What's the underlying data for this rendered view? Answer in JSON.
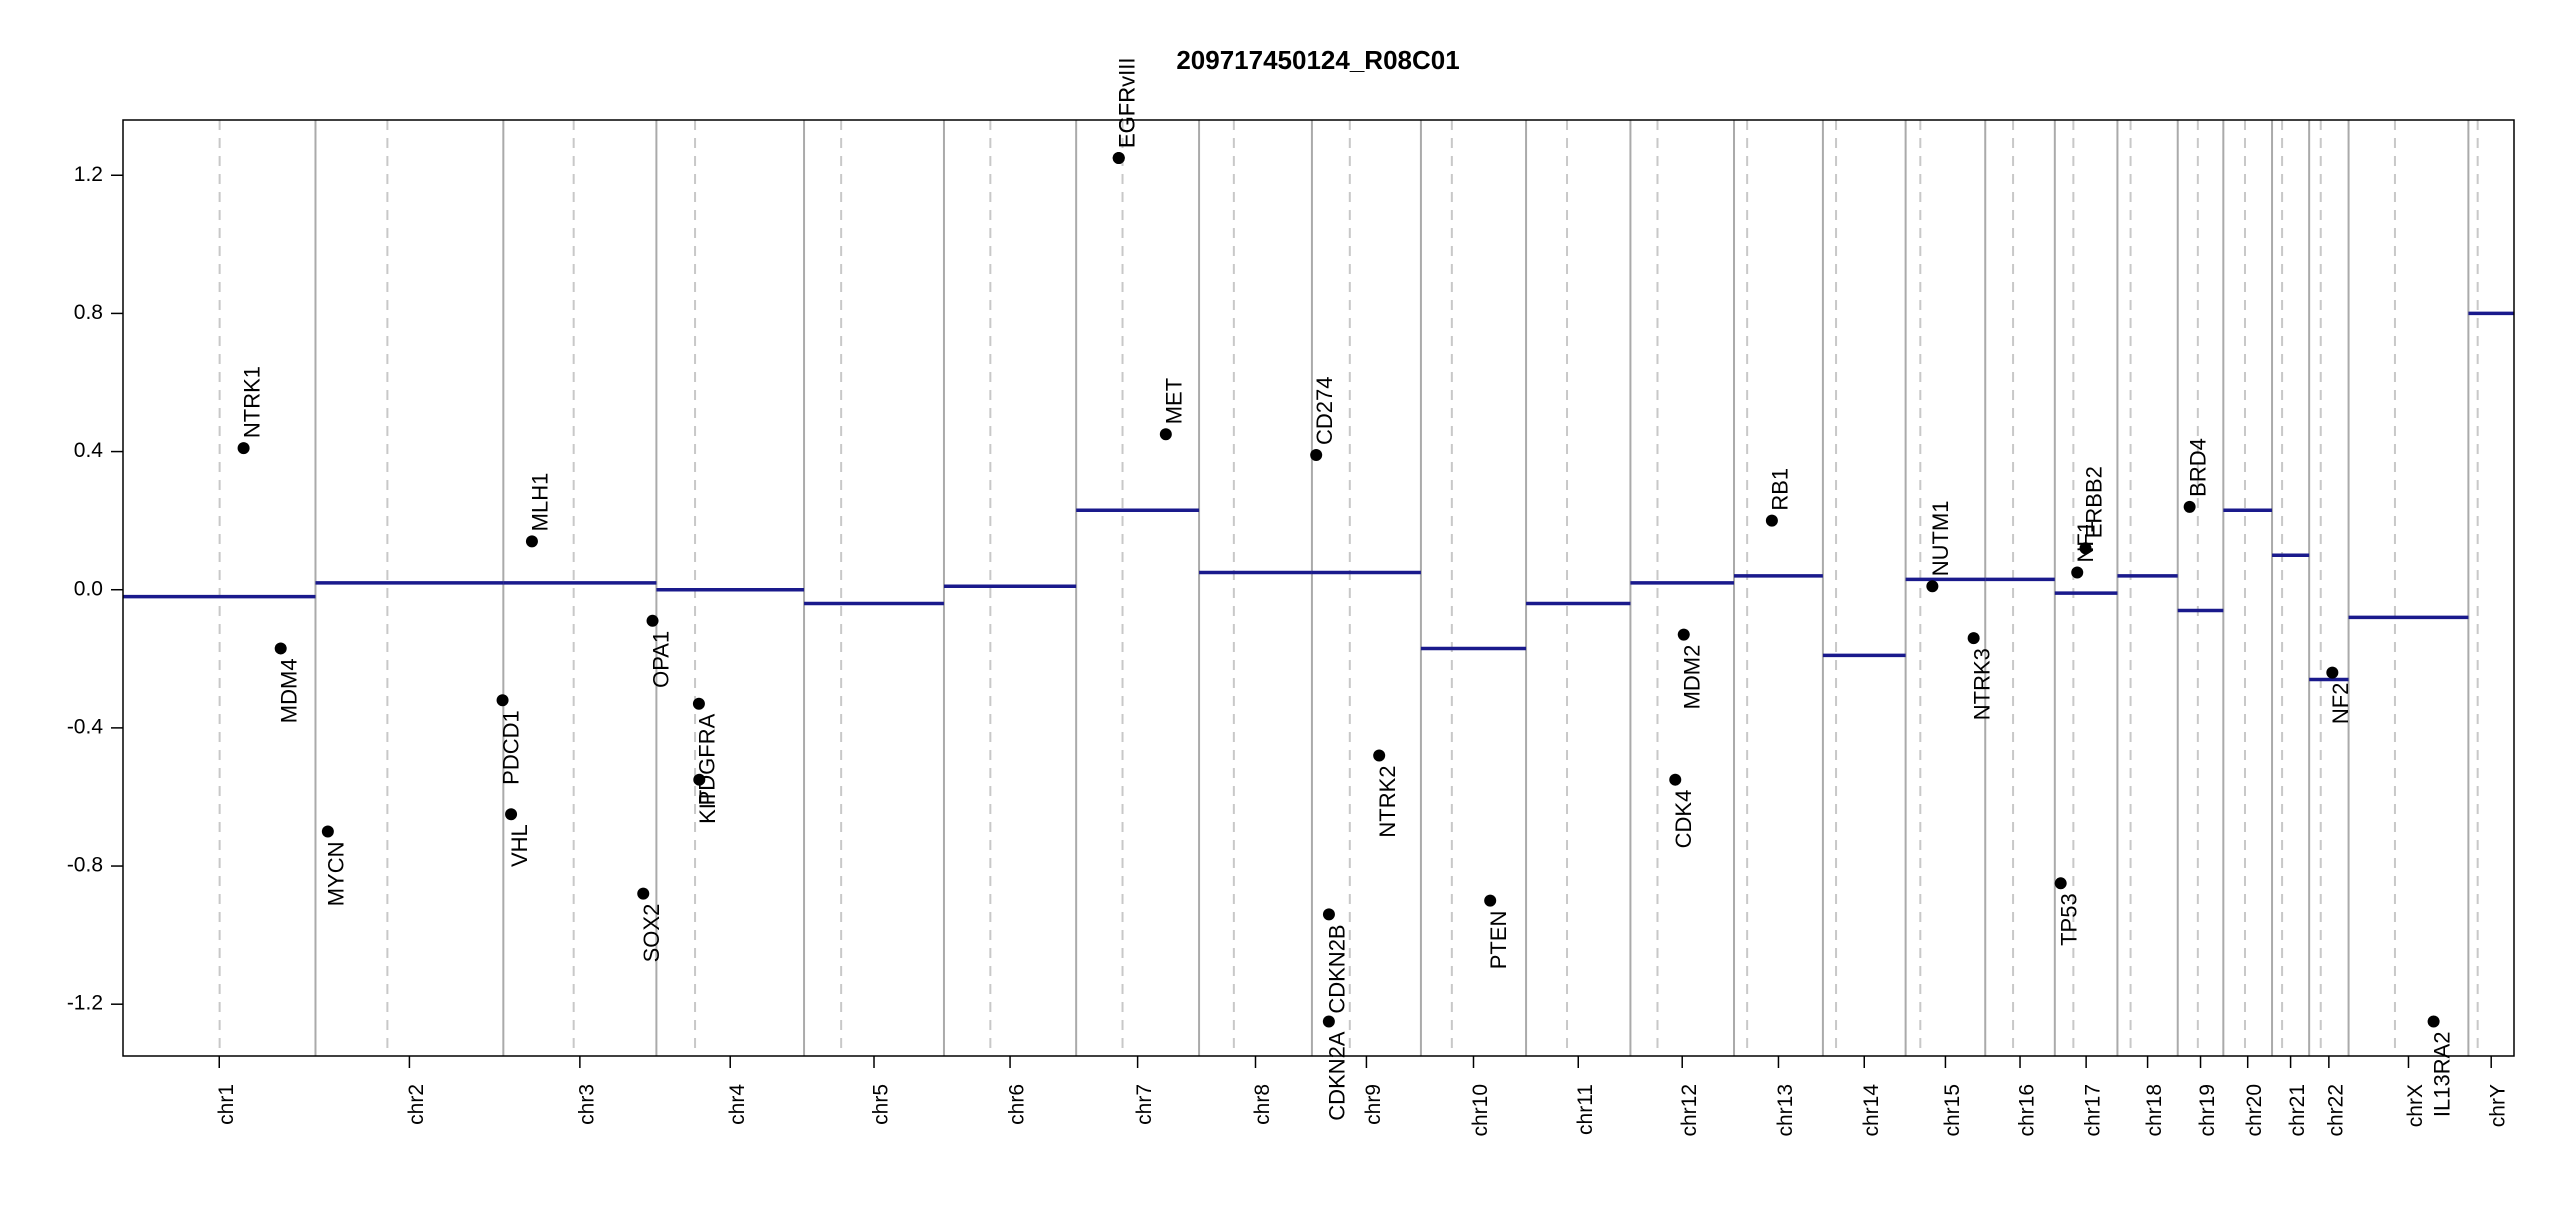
{
  "chart_data": {
    "type": "copy-number",
    "title": "209717450124_R08C01",
    "chromosomes": [
      "chr1",
      "chr2",
      "chr3",
      "chr4",
      "chr5",
      "chr6",
      "chr7",
      "chr8",
      "chr9",
      "chr10",
      "chr11",
      "chr12",
      "chr13",
      "chr14",
      "chr15",
      "chr16",
      "chr17",
      "chr18",
      "chr19",
      "chr20",
      "chr21",
      "chr22",
      "chrX",
      "chrY"
    ],
    "lengths": [
      249,
      243,
      198,
      191,
      181,
      171,
      159,
      146,
      141,
      136,
      135,
      134,
      115,
      107,
      103,
      90,
      81,
      78,
      59,
      63,
      48,
      51,
      155,
      59
    ],
    "centromeres": [
      125,
      93,
      91,
      50,
      48,
      60,
      60,
      45,
      49,
      40,
      53,
      35,
      17,
      17,
      19,
      36,
      24,
      17,
      26,
      28,
      13,
      15,
      60,
      12
    ],
    "segments": [
      -0.02,
      0.02,
      0.02,
      0.0,
      -0.04,
      0.01,
      0.23,
      0.05,
      0.05,
      -0.17,
      -0.04,
      0.02,
      0.04,
      -0.19,
      0.03,
      0.03,
      -0.01,
      0.04,
      -0.06,
      0.23,
      0.1,
      -0.26,
      -0.08,
      0.8
    ],
    "segment_color": "#1a1a8c",
    "genes": [
      {
        "name": "NTRK1",
        "chrom": "chr1",
        "pos": 156,
        "value": 0.41
      },
      {
        "name": "MDM4",
        "chrom": "chr1",
        "pos": 204,
        "value": -0.17
      },
      {
        "name": "MYCN",
        "chrom": "chr2",
        "pos": 16,
        "value": -0.7
      },
      {
        "name": "PDCD1",
        "chrom": "chr2",
        "pos": 242,
        "value": -0.32
      },
      {
        "name": "VHL",
        "chrom": "chr3",
        "pos": 10,
        "value": -0.65
      },
      {
        "name": "MLH1",
        "chrom": "chr3",
        "pos": 37,
        "value": 0.14
      },
      {
        "name": "SOX2",
        "chrom": "chr3",
        "pos": 181,
        "value": -0.88
      },
      {
        "name": "OPA1",
        "chrom": "chr3",
        "pos": 193,
        "value": -0.09
      },
      {
        "name": "PDGFRA",
        "chrom": "chr4",
        "pos": 55,
        "value": -0.33
      },
      {
        "name": "KIT",
        "chrom": "chr4",
        "pos": 55.5,
        "value": -0.55
      },
      {
        "name": "EGFR",
        "chrom": "chr7",
        "pos": 55,
        "value": 1.25
      },
      {
        "name": "EGFRvIII",
        "chrom": "chr7",
        "pos": 55.2,
        "value": 1.25
      },
      {
        "name": "MET",
        "chrom": "chr7",
        "pos": 116,
        "value": 0.45
      },
      {
        "name": "CD274",
        "chrom": "chr9",
        "pos": 5.5,
        "value": 0.39
      },
      {
        "name": "CDKN2A",
        "chrom": "chr9",
        "pos": 21.9,
        "value": -1.25
      },
      {
        "name": "CDKN2B",
        "chrom": "chr9",
        "pos": 22.0,
        "value": -0.94
      },
      {
        "name": "NTRK2",
        "chrom": "chr9",
        "pos": 87,
        "value": -0.48
      },
      {
        "name": "PTEN",
        "chrom": "chr10",
        "pos": 89.6,
        "value": -0.9
      },
      {
        "name": "CDK4",
        "chrom": "chr12",
        "pos": 58,
        "value": -0.55
      },
      {
        "name": "MDM2",
        "chrom": "chr12",
        "pos": 69,
        "value": -0.13
      },
      {
        "name": "RB1",
        "chrom": "chr13",
        "pos": 49,
        "value": 0.2
      },
      {
        "name": "NUTM1",
        "chrom": "chr15",
        "pos": 34.6,
        "value": 0.01
      },
      {
        "name": "NTRK3",
        "chrom": "chr15",
        "pos": 88,
        "value": -0.14
      },
      {
        "name": "TP53",
        "chrom": "chr17",
        "pos": 7.6,
        "value": -0.85
      },
      {
        "name": "NF1",
        "chrom": "chr17",
        "pos": 29,
        "value": 0.05
      },
      {
        "name": "ERBB2",
        "chrom": "chr17",
        "pos": 39.7,
        "value": 0.12
      },
      {
        "name": "BRD4",
        "chrom": "chr19",
        "pos": 15.4,
        "value": 0.24
      },
      {
        "name": "NF2",
        "chrom": "chr22",
        "pos": 30,
        "value": -0.24
      },
      {
        "name": "IL13RA2",
        "chrom": "chrX",
        "pos": 110,
        "value": -1.25
      }
    ],
    "ylim": [
      -1.35,
      1.36
    ],
    "yticks": [
      -1.2,
      -0.8,
      -0.4,
      {
        "value": 0,
        "label": "0.0"
      },
      0.4,
      0.8,
      1.2
    ]
  }
}
